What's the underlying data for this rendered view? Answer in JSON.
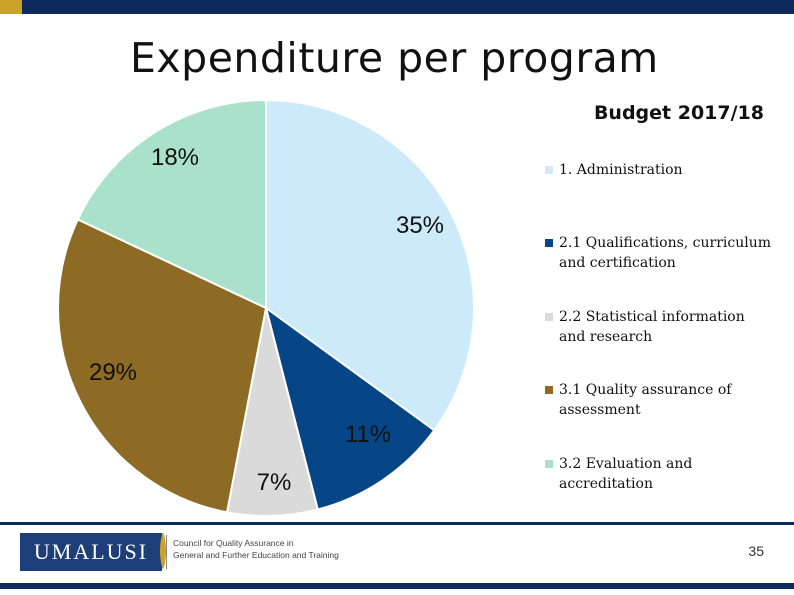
{
  "slide": {
    "title": "Expenditure per program",
    "page_number": "35",
    "logo_text": "UMALUSI",
    "logo_tagline_1": "Council for Quality Assurance in",
    "logo_tagline_2": "General and Further Education and Training",
    "colors": {
      "header_band": "#0c2a5e",
      "accent": "#c9a227"
    }
  },
  "chart_data": {
    "type": "pie",
    "title": "Budget 2017/18",
    "legend_position": "right",
    "slices": [
      {
        "label": "1. Administration",
        "value": 35,
        "display": "35%",
        "color": "#cdeafa"
      },
      {
        "label": "2.1 Qualifications, curriculum and certification",
        "value": 11,
        "display": "11%",
        "color": "#064687"
      },
      {
        "label": "2.2 Statistical information and research",
        "value": 7,
        "display": "7%",
        "color": "#dadada"
      },
      {
        "label": "3.1 Quality assurance of assessment",
        "value": 29,
        "display": "29%",
        "color": "#8e6b24"
      },
      {
        "label": "3.2 Evaluation and accreditation",
        "value": 18,
        "display": "18%",
        "color": "#a9e1cc"
      }
    ]
  }
}
